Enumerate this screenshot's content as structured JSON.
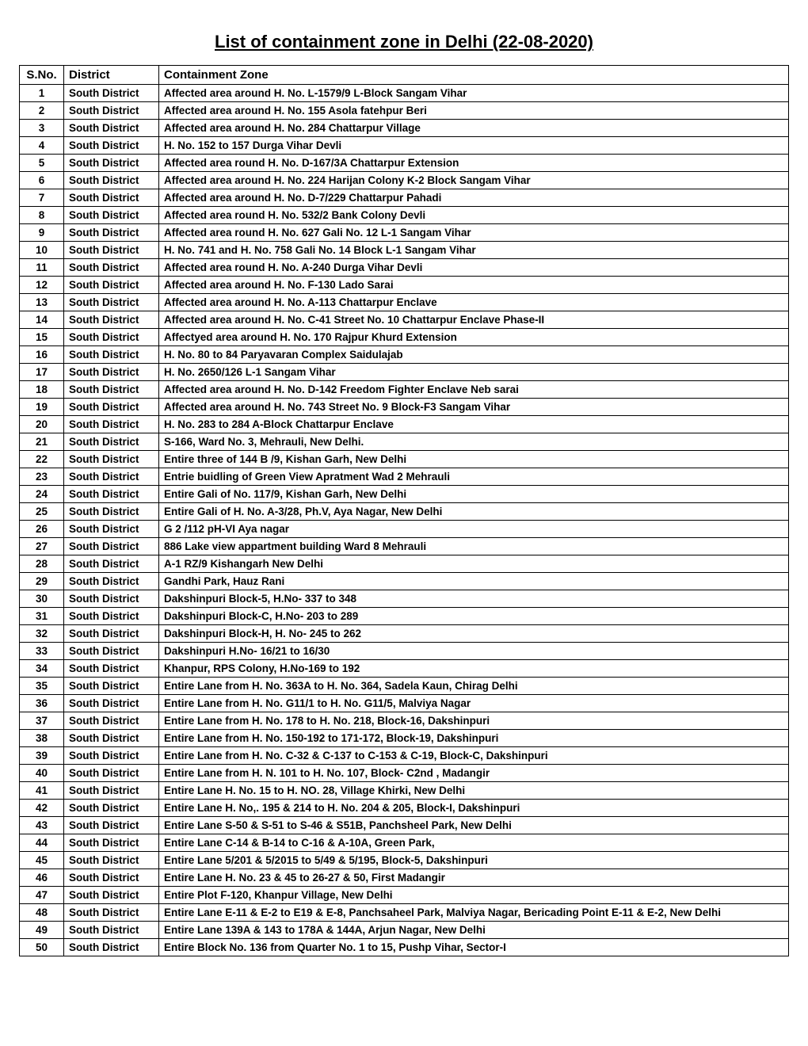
{
  "title": "List of containment zone in Delhi (22-08-2020)",
  "columns": {
    "sno": "S.No.",
    "district": "District",
    "zone": "Containment Zone"
  },
  "rows": [
    {
      "sno": "1",
      "district": "South District",
      "zone": "Affected area around H. No. L-1579/9 L-Block Sangam Vihar"
    },
    {
      "sno": "2",
      "district": "South District",
      "zone": "Affected area around H. No. 155 Asola fatehpur Beri"
    },
    {
      "sno": "3",
      "district": "South District",
      "zone": "Affected area around H. No. 284 Chattarpur Village"
    },
    {
      "sno": "4",
      "district": "South District",
      "zone": "H. No. 152 to 157 Durga Vihar Devli"
    },
    {
      "sno": "5",
      "district": "South District",
      "zone": "Affected area round H. No. D-167/3A Chattarpur Extension"
    },
    {
      "sno": "6",
      "district": "South District",
      "zone": "Affected area around H. No. 224 Harijan Colony K-2 Block Sangam Vihar"
    },
    {
      "sno": "7",
      "district": "South District",
      "zone": "Affected area around H. No. D-7/229 Chattarpur Pahadi"
    },
    {
      "sno": "8",
      "district": "South District",
      "zone": "Affected area round H. No. 532/2 Bank Colony Devli"
    },
    {
      "sno": "9",
      "district": "South District",
      "zone": "Affected area round H. No. 627 Gali No. 12 L-1 Sangam Vihar"
    },
    {
      "sno": "10",
      "district": "South District",
      "zone": "H. No. 741 and H. No. 758 Gali No. 14 Block L-1 Sangam Vihar"
    },
    {
      "sno": "11",
      "district": "South District",
      "zone": "Affected area round H. No. A-240 Durga Vihar Devli"
    },
    {
      "sno": "12",
      "district": "South District",
      "zone": "Affected area around H. No. F-130 Lado Sarai"
    },
    {
      "sno": "13",
      "district": "South District",
      "zone": "Affected area around H. No. A-113 Chattarpur Enclave"
    },
    {
      "sno": "14",
      "district": "South District",
      "zone": "Affected area around H. No. C-41 Street No. 10 Chattarpur Enclave Phase-II"
    },
    {
      "sno": "15",
      "district": "South District",
      "zone": "Affectyed area around H. No. 170 Rajpur Khurd Extension"
    },
    {
      "sno": "16",
      "district": "South District",
      "zone": "H. No. 80 to 84 Paryavaran Complex Saidulajab"
    },
    {
      "sno": "17",
      "district": "South District",
      "zone": "H. No. 2650/126 L-1 Sangam Vihar"
    },
    {
      "sno": "18",
      "district": "South District",
      "zone": "Affected area around H. No. D-142 Freedom Fighter Enclave Neb sarai"
    },
    {
      "sno": "19",
      "district": "South District",
      "zone": "Affected area around H. No. 743 Street No. 9 Block-F3 Sangam Vihar"
    },
    {
      "sno": "20",
      "district": "South District",
      "zone": "H. No. 283 to 284 A-Block Chattarpur Enclave"
    },
    {
      "sno": "21",
      "district": "South District",
      "zone": "S-166, Ward No. 3, Mehrauli, New Delhi."
    },
    {
      "sno": "22",
      "district": "South District",
      "zone": "Entire three of 144 B /9, Kishan Garh, New Delhi"
    },
    {
      "sno": "23",
      "district": "South District",
      "zone": "Entrie buidling of Green View Apratment Wad 2 Mehrauli"
    },
    {
      "sno": "24",
      "district": "South District",
      "zone": "Entire Gali of No. 117/9, Kishan Garh, New Delhi"
    },
    {
      "sno": "25",
      "district": "South District",
      "zone": "Entire Gali of H. No. A-3/28, Ph.V, Aya Nagar, New Delhi"
    },
    {
      "sno": "26",
      "district": "South District",
      "zone": "G 2 /112 pH-VI Aya nagar"
    },
    {
      "sno": "27",
      "district": "South District",
      "zone": "886 Lake view appartment building Ward 8 Mehrauli"
    },
    {
      "sno": "28",
      "district": "South District",
      "zone": "A-1 RZ/9 Kishangarh New Delhi"
    },
    {
      "sno": "29",
      "district": "South District",
      "zone": "Gandhi Park, Hauz Rani"
    },
    {
      "sno": "30",
      "district": "South District",
      "zone": "Dakshinpuri Block-5, H.No- 337 to 348"
    },
    {
      "sno": "31",
      "district": "South District",
      "zone": "Dakshinpuri Block-C, H.No- 203 to 289"
    },
    {
      "sno": "32",
      "district": "South District",
      "zone": "Dakshinpuri Block-H, H. No- 245 to 262"
    },
    {
      "sno": "33",
      "district": "South District",
      "zone": "Dakshinpuri H.No- 16/21 to 16/30"
    },
    {
      "sno": "34",
      "district": "South District",
      "zone": "Khanpur, RPS Colony, H.No-169 to 192"
    },
    {
      "sno": "35",
      "district": "South District",
      "zone": "Entire Lane from H. No. 363A to H. No. 364, Sadela Kaun, Chirag Delhi"
    },
    {
      "sno": "36",
      "district": "South District",
      "zone": "Entire Lane from H. No. G11/1 to H. No. G11/5, Malviya Nagar"
    },
    {
      "sno": "37",
      "district": "South District",
      "zone": "Entire Lane from H. No. 178 to H. No. 218, Block-16, Dakshinpuri"
    },
    {
      "sno": "38",
      "district": "South District",
      "zone": "Entire Lane from H. No. 150-192 to 171-172, Block-19, Dakshinpuri"
    },
    {
      "sno": "39",
      "district": "South District",
      "zone": "Entire Lane from H. No. C-32 & C-137 to C-153 & C-19, Block-C, Dakshinpuri"
    },
    {
      "sno": "40",
      "district": "South District",
      "zone": "Entire Lane from H. N. 101 to H. No. 107, Block- C2nd , Madangir"
    },
    {
      "sno": "41",
      "district": "South District",
      "zone": "Entire Lane H. No. 15 to H. NO. 28, Village Khirki, New Delhi"
    },
    {
      "sno": "42",
      "district": "South District",
      "zone": "Entire Lane H. No,. 195 & 214 to H. No. 204 & 205, Block-I, Dakshinpuri"
    },
    {
      "sno": "43",
      "district": "South District",
      "zone": "Entire Lane S-50 & S-51 to S-46 & S51B, Panchsheel Park, New Delhi"
    },
    {
      "sno": "44",
      "district": "South District",
      "zone": "Entire Lane C-14 & B-14 to C-16 & A-10A, Green Park,"
    },
    {
      "sno": "45",
      "district": "South District",
      "zone": "Entire Lane 5/201 & 5/2015 to 5/49 & 5/195, Block-5, Dakshinpuri"
    },
    {
      "sno": "46",
      "district": "South District",
      "zone": "Entire Lane H. No. 23 & 45 to 26-27 & 50, First Madangir"
    },
    {
      "sno": "47",
      "district": "South District",
      "zone": "Entire Plot F-120, Khanpur Village, New Delhi"
    },
    {
      "sno": "48",
      "district": "South District",
      "zone": "Entire Lane E-11 & E-2 to E19 & E-8, Panchsaheel Park, Malviya Nagar, Bericading Point E-11 & E-2, New Delhi"
    },
    {
      "sno": "49",
      "district": "South District",
      "zone": "Entire Lane 139A & 143 to 178A & 144A, Arjun Nagar, New Delhi"
    },
    {
      "sno": "50",
      "district": "South District",
      "zone": "Entire Block No. 136 from Quarter No. 1 to 15, Pushp Vihar, Sector-I"
    }
  ]
}
